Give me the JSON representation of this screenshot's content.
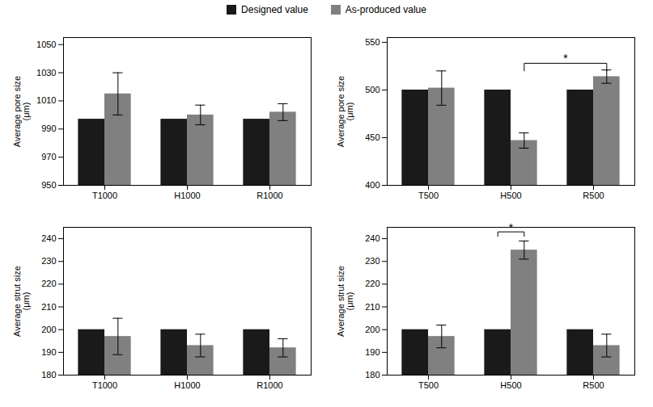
{
  "chart_data": [
    {
      "type": "bar",
      "legend": "top",
      "categories": [
        "T1000",
        "H1000",
        "R1000"
      ],
      "series": [
        {
          "name": "Designed value",
          "color": "#1a1a1a",
          "values": [
            997,
            997,
            997
          ]
        },
        {
          "name": "As-produced value",
          "color": "#808080",
          "values": [
            1015,
            1000,
            1002
          ],
          "errors": [
            15,
            7,
            6
          ]
        }
      ],
      "ylabel": "Average pore size\n(μm)",
      "ylim": [
        950,
        1055
      ],
      "yticks": [
        950,
        970,
        990,
        1010,
        1030,
        1050
      ],
      "annotations": []
    },
    {
      "type": "bar",
      "legend": "top",
      "categories": [
        "T500",
        "H500",
        "R500"
      ],
      "series": [
        {
          "name": "Designed value",
          "color": "#1a1a1a",
          "values": [
            500,
            500,
            500
          ]
        },
        {
          "name": "As-produced value",
          "color": "#808080",
          "values": [
            502,
            447,
            514
          ],
          "errors": [
            18,
            8,
            7
          ]
        }
      ],
      "ylabel": "Average pore size\n(μm)",
      "ylim": [
        400,
        555
      ],
      "yticks": [
        400,
        450,
        500,
        550
      ],
      "annotations": [
        {
          "text": "*",
          "y": 529,
          "bracket_y": 528,
          "tick_down": 8,
          "from": {
            "category": "H500",
            "series": "As-produced value"
          },
          "to": {
            "category": "R500",
            "series": "As-produced value"
          }
        }
      ]
    },
    {
      "type": "bar",
      "legend": "top",
      "categories": [
        "T1000",
        "H1000",
        "R1000"
      ],
      "series": [
        {
          "name": "Designed value",
          "color": "#1a1a1a",
          "values": [
            200,
            200,
            200
          ]
        },
        {
          "name": "As-produced value",
          "color": "#808080",
          "values": [
            197,
            193,
            192
          ],
          "errors": [
            8,
            5,
            4
          ]
        }
      ],
      "ylabel": "Average strut size\n(μm)",
      "ylim": [
        180,
        245
      ],
      "yticks": [
        180,
        190,
        200,
        210,
        220,
        230,
        240
      ],
      "annotations": []
    },
    {
      "type": "bar",
      "legend": "top",
      "categories": [
        "T500",
        "H500",
        "R500"
      ],
      "series": [
        {
          "name": "Designed value",
          "color": "#1a1a1a",
          "values": [
            200,
            200,
            200
          ]
        },
        {
          "name": "As-produced value",
          "color": "#808080",
          "values": [
            197,
            235,
            193
          ],
          "errors": [
            5,
            4,
            5
          ]
        }
      ],
      "ylabel": "Average strut size\n(μm)",
      "ylim": [
        180,
        245
      ],
      "yticks": [
        180,
        190,
        200,
        210,
        220,
        230,
        240
      ],
      "annotations": [
        {
          "text": "*",
          "y": 243,
          "bracket_y": 243,
          "tick_down": 2,
          "from": {
            "category": "H500",
            "series": "Designed value"
          },
          "to": {
            "category": "H500",
            "series": "As-produced value"
          }
        }
      ]
    }
  ]
}
